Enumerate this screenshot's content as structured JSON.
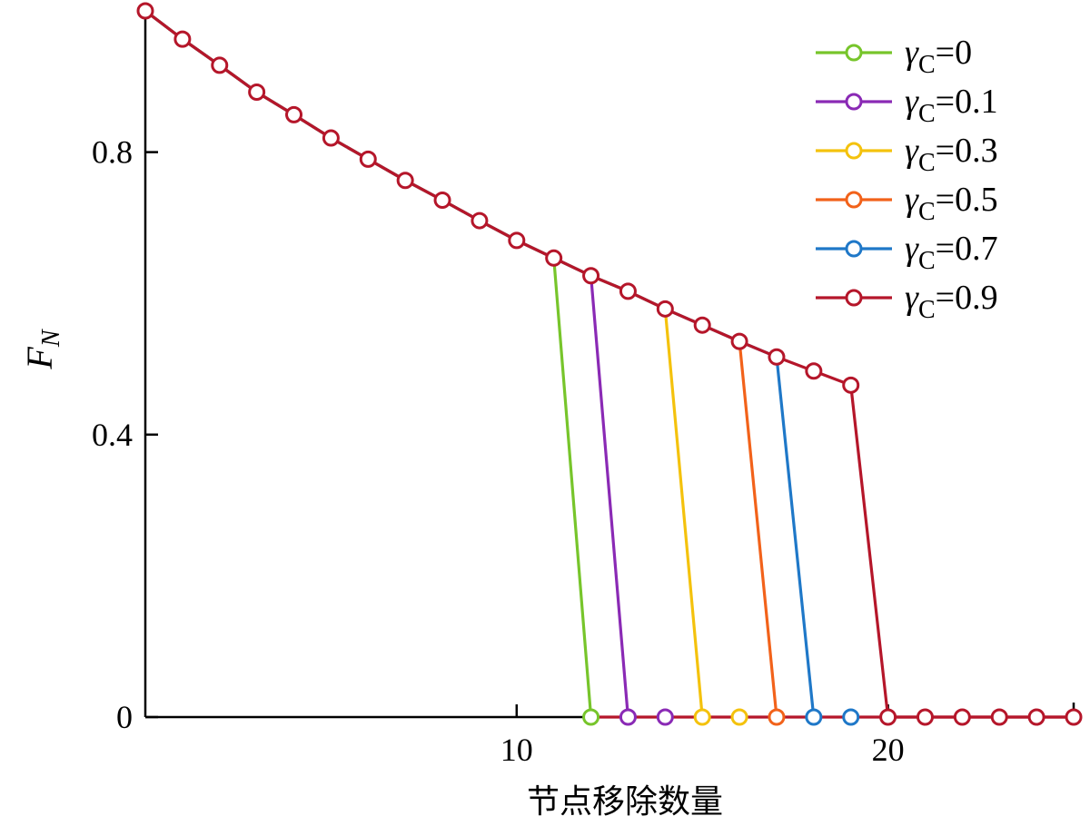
{
  "chart_data": {
    "type": "line",
    "xlabel": "节点移除数量",
    "ylabel_main": "F",
    "ylabel_sub": "N",
    "xlim": [
      0,
      25
    ],
    "ylim": [
      0,
      1.0
    ],
    "xticks": [
      10,
      20
    ],
    "yticks": [
      0,
      0.4,
      0.8
    ],
    "ytick_labels": [
      "0",
      "0.4",
      "0.8"
    ],
    "grid": false,
    "legend_position": "top-right",
    "main_points": [
      [
        0,
        1.0
      ],
      [
        1,
        0.96
      ],
      [
        2,
        0.923
      ],
      [
        3,
        0.885
      ],
      [
        4,
        0.853
      ],
      [
        5,
        0.82
      ],
      [
        6,
        0.79
      ],
      [
        7,
        0.76
      ],
      [
        8,
        0.732
      ],
      [
        9,
        0.703
      ],
      [
        10,
        0.675
      ],
      [
        11,
        0.65
      ],
      [
        12,
        0.625
      ],
      [
        13,
        0.603
      ],
      [
        14,
        0.578
      ],
      [
        15,
        0.555
      ],
      [
        16,
        0.532
      ],
      [
        17,
        0.51
      ],
      [
        18,
        0.49
      ],
      [
        19,
        0.47
      ]
    ],
    "zero_tail_points": [
      20,
      21,
      22,
      23,
      24,
      25
    ],
    "series": [
      {
        "name_prefix": "γ",
        "name_sub": "C",
        "name_suffix": "=0",
        "color": "#77c52b",
        "last_x": 11,
        "drop_x": 12
      },
      {
        "name_prefix": "γ",
        "name_sub": "C",
        "name_suffix": "=0.1",
        "color": "#8a2ab5",
        "last_x": 12,
        "drop_x": 13
      },
      {
        "name_prefix": "γ",
        "name_sub": "C",
        "name_suffix": "=0.3",
        "color": "#f4c20d",
        "last_x": 14,
        "drop_x": 15
      },
      {
        "name_prefix": "γ",
        "name_sub": "C",
        "name_suffix": "=0.5",
        "color": "#f2621a",
        "last_x": 16,
        "drop_x": 17
      },
      {
        "name_prefix": "γ",
        "name_sub": "C",
        "name_suffix": "=0.7",
        "color": "#1f78c8",
        "last_x": 17,
        "drop_x": 18
      },
      {
        "name_prefix": "γ",
        "name_sub": "C",
        "name_suffix": "=0.9",
        "color": "#b5162a",
        "last_x": 19,
        "drop_x": 20
      }
    ]
  }
}
